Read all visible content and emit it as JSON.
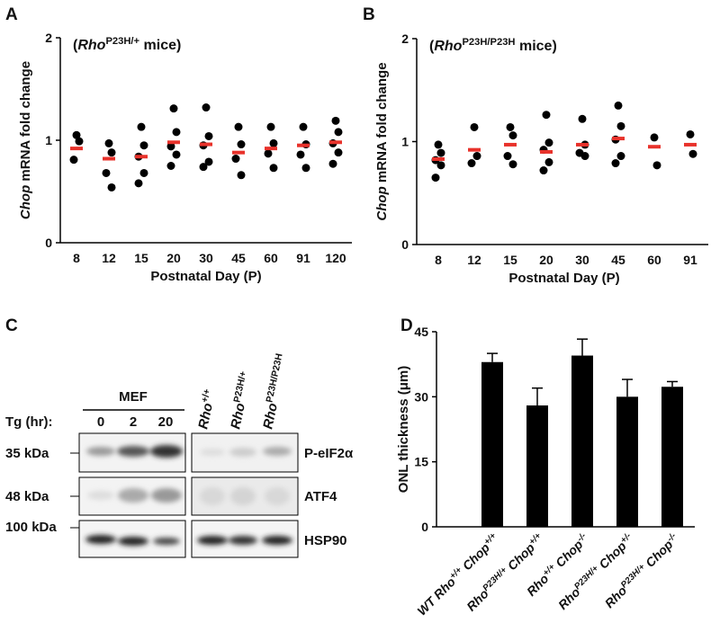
{
  "chart_data": [
    {
      "type": "dot",
      "panel": "A",
      "annotation": [
        "(",
        "Rho",
        "P23H/+",
        " mice)"
      ],
      "xlabel": "Postnatal Day (P)",
      "ylabel": [
        "Chop",
        " mRNA fold change"
      ],
      "categories": [
        "8",
        "12",
        "15",
        "20",
        "30",
        "45",
        "60",
        "91",
        "120"
      ],
      "points": [
        [
          1.05,
          0.99,
          0.81
        ],
        [
          0.97,
          0.88,
          0.68,
          0.54
        ],
        [
          1.13,
          0.95,
          0.84,
          0.68,
          0.58
        ],
        [
          1.31,
          1.08,
          0.94,
          0.86,
          0.75
        ],
        [
          1.32,
          1.04,
          0.95,
          0.79,
          0.74
        ],
        [
          1.13,
          0.96,
          0.82,
          0.66
        ],
        [
          1.13,
          0.97,
          0.87,
          0.73
        ],
        [
          1.13,
          0.96,
          0.86,
          0.73
        ],
        [
          1.19,
          1.08,
          0.97,
          0.88,
          0.77
        ]
      ],
      "means": [
        0.92,
        0.82,
        0.84,
        0.98,
        0.96,
        0.88,
        0.92,
        0.95,
        0.98
      ],
      "point_color": "#000000",
      "mean_color": "#e8322b",
      "ylim": [
        0,
        2
      ],
      "yticks": [
        0,
        1,
        2
      ]
    },
    {
      "type": "dot",
      "panel": "B",
      "annotation": [
        "(",
        "Rho",
        "P23H/P23H",
        " mice)"
      ],
      "xlabel": "Postnatal Day (P)",
      "ylabel": [
        "Chop",
        " mRNA fold change"
      ],
      "categories": [
        "8",
        "12",
        "15",
        "20",
        "30",
        "45",
        "60",
        "91"
      ],
      "points": [
        [
          0.97,
          0.89,
          0.82,
          0.77,
          0.65
        ],
        [
          1.14,
          0.86,
          0.79
        ],
        [
          1.14,
          1.06,
          0.86,
          0.78
        ],
        [
          1.26,
          0.99,
          0.92,
          0.8,
          0.72
        ],
        [
          1.22,
          0.97,
          0.89,
          0.86
        ],
        [
          1.35,
          1.15,
          1.02,
          0.86,
          0.79
        ],
        [
          1.04,
          0.77
        ],
        [
          1.07,
          0.88
        ]
      ],
      "means": [
        0.83,
        0.92,
        0.97,
        0.9,
        0.97,
        1.03,
        0.95,
        0.97
      ],
      "point_color": "#000000",
      "mean_color": "#e8322b",
      "ylim": [
        0,
        2
      ],
      "yticks": [
        0,
        1,
        2
      ]
    },
    {
      "type": "bar",
      "panel": "D",
      "ylabel": "ONL thickness (μm)",
      "categories": [
        [
          "WT Rho",
          "+/+",
          " Chop",
          "+/+"
        ],
        [
          "Rho",
          "P23H/+",
          " Chop",
          "+/+"
        ],
        [
          "Rho",
          "+/+",
          " Chop",
          "-/-"
        ],
        [
          "Rho",
          "P23H/+",
          " Chop",
          "+/-"
        ],
        [
          "Rho",
          "P23H/+",
          " Chop",
          "-/-"
        ]
      ],
      "values": [
        38,
        28,
        39.5,
        30,
        32.3
      ],
      "errors": [
        2,
        4,
        3.8,
        4,
        1.2
      ],
      "color": "#000000",
      "ylim": [
        0,
        45
      ],
      "yticks": [
        0,
        15,
        30,
        45
      ]
    }
  ],
  "western_blot": {
    "panel": "C",
    "group_label": "MEF",
    "tg_label": "Tg (hr):",
    "tg_times": [
      "0",
      "2",
      "20"
    ],
    "lanes": [
      [
        "Rho",
        "+/+"
      ],
      [
        "Rho",
        "P23H/+"
      ],
      [
        "Rho",
        "P23H/P23H"
      ]
    ],
    "rows": [
      {
        "marker": "35 kDa",
        "protein": "P-eIF2α"
      },
      {
        "marker": "48 kDa",
        "protein": "ATF4"
      },
      {
        "marker": "100 kDa",
        "protein": "HSP90"
      }
    ]
  }
}
